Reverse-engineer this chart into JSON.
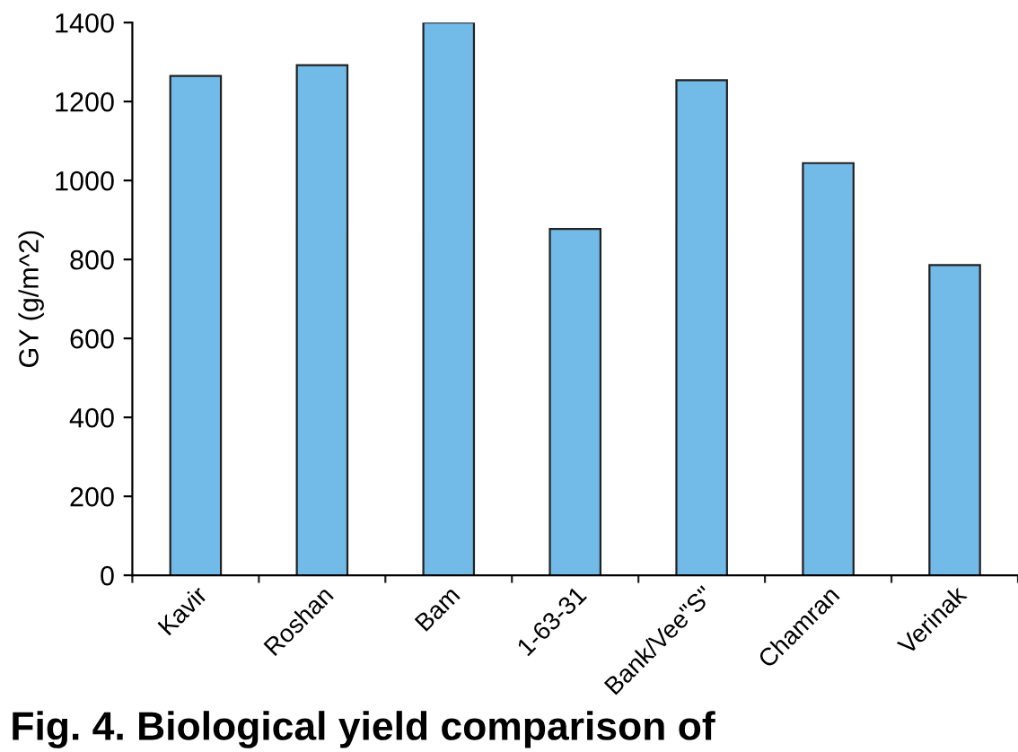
{
  "chart_data": {
    "type": "bar",
    "title": "Fig. 4. Biological yield comparison of",
    "ylabel": "GY (g/m^2)",
    "categories": [
      "Kavir",
      "Roshan",
      "Bam",
      "1-63-31",
      "Bank/Vee\"S\"",
      "Chamran",
      "Verinak"
    ],
    "values": [
      1265,
      1292,
      1400,
      877,
      1254,
      1044,
      786
    ],
    "color": "#72bae8",
    "ylim": [
      0,
      1400
    ],
    "yticks": [
      0,
      200,
      400,
      600,
      800,
      1000,
      1200,
      1400
    ],
    "grid": false,
    "legend": false
  }
}
